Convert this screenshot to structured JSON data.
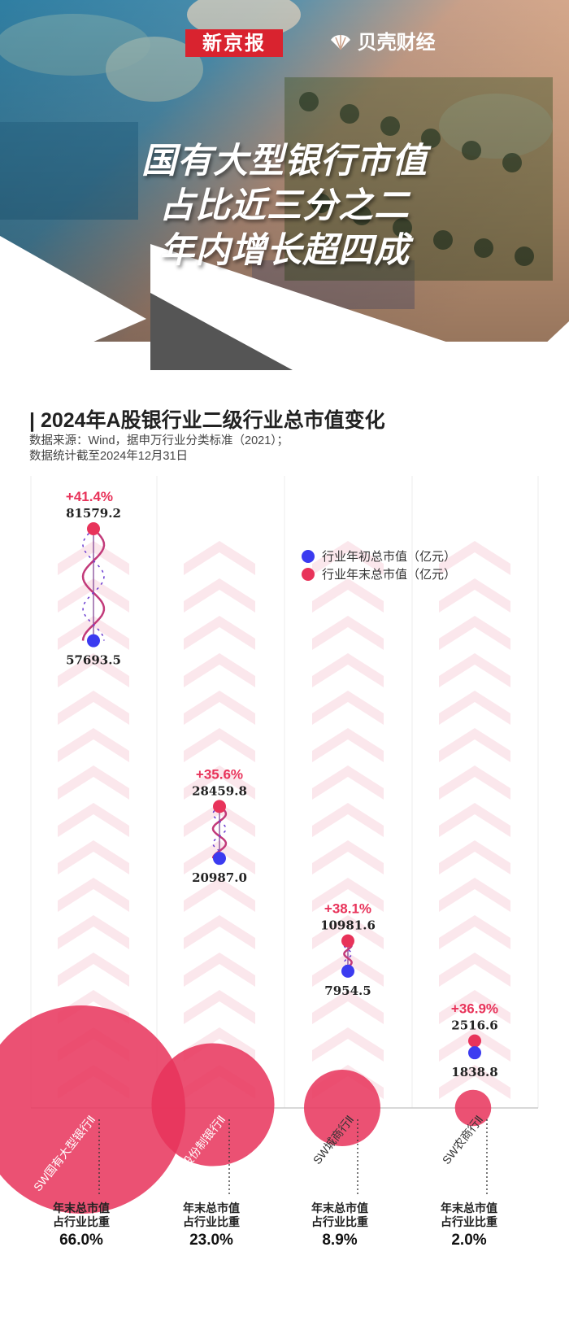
{
  "header": {
    "brand_primary": "新京报",
    "brand_secondary": "贝壳财经",
    "headline": [
      "国有大型银行市值",
      "占比近三分之二",
      "年内增长超四成"
    ]
  },
  "section": {
    "title": "| 2024年A股银行业二级行业总市值变化",
    "source_line1": "数据来源：Wind，据申万行业分类标准（2021）；",
    "source_line2": "数据统计截至2024年12月31日"
  },
  "chart_data": {
    "type": "dumbbell",
    "title": "2024年A股银行业二级行业总市值变化",
    "unit": "亿元",
    "legend": [
      {
        "label": "行业年初总市值（亿元）",
        "color": "#3b3bf0"
      },
      {
        "label": "行业年末总市值（亿元）",
        "color": "#e8335a"
      }
    ],
    "y_range": [
      0,
      81579.2
    ],
    "share_label": [
      "年末总市值",
      "占行业比重"
    ],
    "categories": [
      {
        "name": "SW国有大型银行Ⅱ",
        "start": 57693.5,
        "end": 81579.2,
        "change": "+41.4%",
        "share": "66.0%",
        "share_value": 66.0
      },
      {
        "name": "SW股份制银行Ⅱ",
        "start": 20987.0,
        "end": 28459.8,
        "change": "+35.6%",
        "share": "23.0%",
        "share_value": 23.0
      },
      {
        "name": "SW城商行Ⅱ",
        "start": 7954.5,
        "end": 10981.6,
        "change": "+38.1%",
        "share": "8.9%",
        "share_value": 8.9
      },
      {
        "name": "SW农商行Ⅱ",
        "start": 1838.8,
        "end": 2516.6,
        "change": "+36.9%",
        "share": "2.0%",
        "share_value": 2.0
      }
    ]
  },
  "colors": {
    "accent": "#e8335a",
    "start_dot": "#3b3bf0",
    "end_dot": "#e8335a",
    "chevron": "#fbe7ec",
    "axis": "#cccccc",
    "brand_red": "#d9232f"
  }
}
